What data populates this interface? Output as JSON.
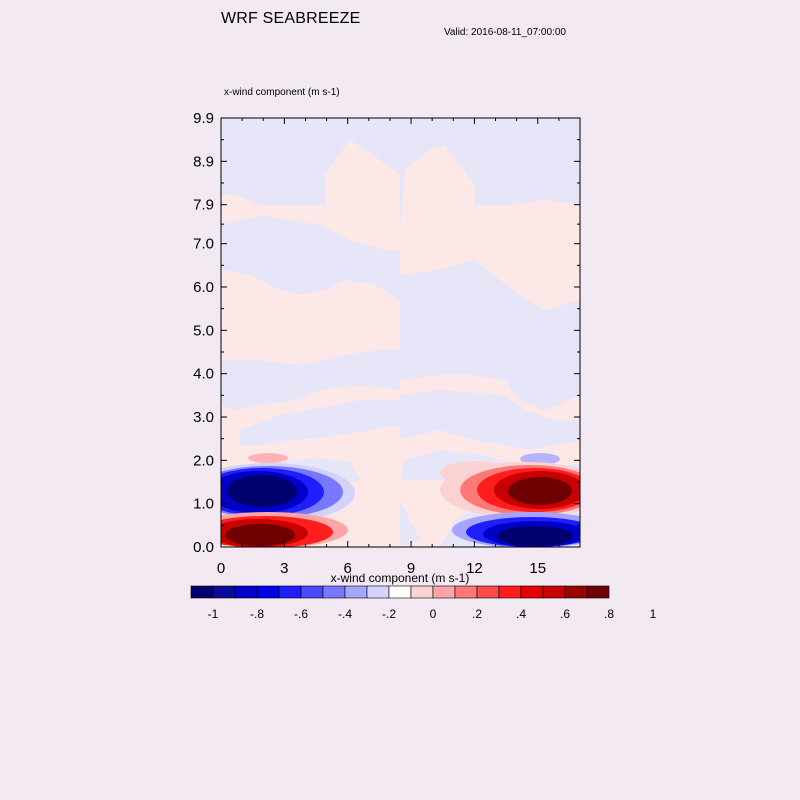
{
  "title": "WRF SEABREEZE",
  "valid": "Valid: 2016-08-11_07:00:00",
  "field_label": "x-wind component   (m s-1)",
  "colorbar_title": "x-wind component  (m s-1)",
  "chart_data": {
    "type": "heatmap",
    "title": "WRF SEABREEZE",
    "field": "x-wind component",
    "units": "m s-1",
    "x_ticks": [
      "0",
      "3",
      "6",
      "9",
      "12",
      "15"
    ],
    "x_tick_values": [
      0,
      3,
      6,
      9,
      12,
      15
    ],
    "xlim": [
      0,
      17
    ],
    "y_ticks": [
      "0.0",
      "1.0",
      "2.0",
      "3.0",
      "4.0",
      "5.0",
      "6.0",
      "7.0",
      "7.9",
      "8.9",
      "9.9"
    ],
    "y_tick_values": [
      0.0,
      1.0,
      2.0,
      3.0,
      4.0,
      5.0,
      6.0,
      7.0,
      7.9,
      8.9,
      9.9
    ],
    "ylim": [
      0,
      9.9
    ],
    "colorbar": {
      "colors": [
        "#00006e",
        "#0a0a9c",
        "#0000c8",
        "#0000e6",
        "#1e1eff",
        "#4a4aff",
        "#7878ff",
        "#a5a5ff",
        "#d2d2fa",
        "#ffffff",
        "#fad2d2",
        "#ffa5a5",
        "#ff7878",
        "#ff4a4a",
        "#ff1e1e",
        "#e60000",
        "#c80000",
        "#9c0000",
        "#6e0000"
      ],
      "labels": [
        "-1",
        "-.8",
        "-.6",
        "-.4",
        "-.2",
        "0",
        ".2",
        ".4",
        ".6",
        ".8",
        "1"
      ]
    },
    "features": [
      {
        "name": "negative core left",
        "x": [
          0,
          5.5
        ],
        "y": [
          0.7,
          1.8
        ],
        "value": -1.0
      },
      {
        "name": "positive core left",
        "x": [
          0,
          4.5
        ],
        "y": [
          0.0,
          0.7
        ],
        "value": 1.0
      },
      {
        "name": "positive core right",
        "x": [
          11,
          17
        ],
        "y": [
          0.7,
          1.9
        ],
        "value": 1.0
      },
      {
        "name": "negative core right",
        "x": [
          11,
          17
        ],
        "y": [
          0.0,
          0.6
        ],
        "value": -1.0
      }
    ]
  },
  "colors": {
    "background": "#f3e9f3",
    "weak_positive": "#fde8e8",
    "weak_negative": "#e6e6f8"
  }
}
